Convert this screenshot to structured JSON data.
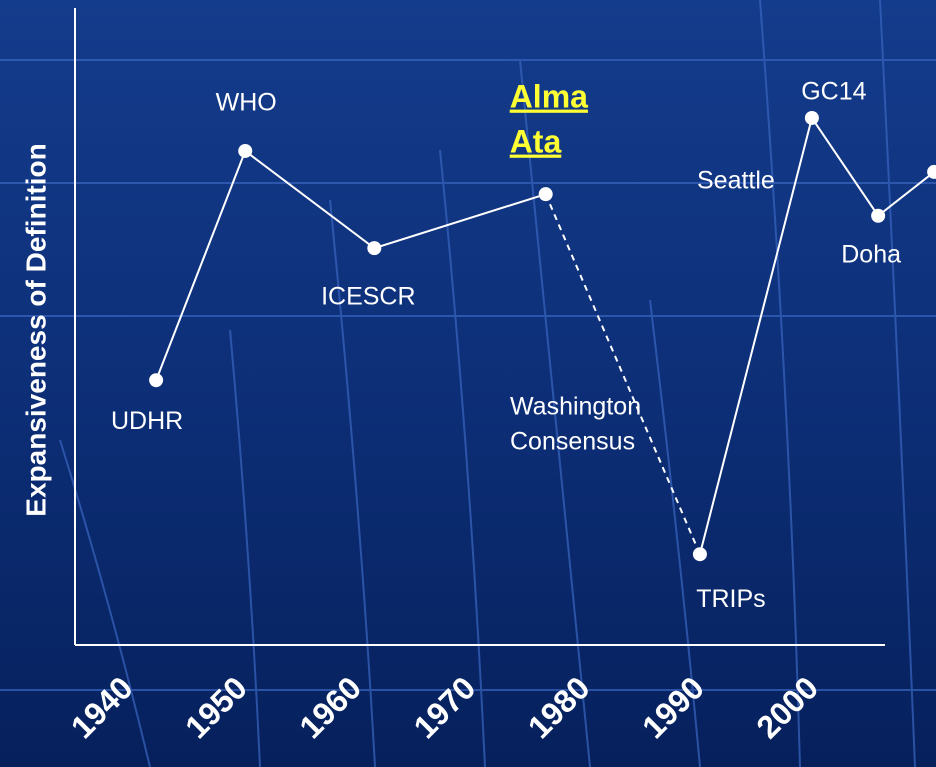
{
  "chart_data": {
    "type": "line",
    "y_label": "Expansiveness of Definition",
    "xlim": [
      1937.4,
      2008.3
    ],
    "xticks": [
      1940,
      1950,
      1960,
      1970,
      1980,
      1990,
      2000
    ],
    "ylim": [
      0,
      100
    ],
    "series": [
      {
        "style": "solid",
        "color": "#ffffff",
        "markers": true,
        "x": [
          1944.5,
          1952.3,
          1963.6,
          1978.6
        ],
        "values": [
          41.7,
          77.8,
          62.5,
          71
        ],
        "labels": [
          [
            "UDHR"
          ],
          [
            "WHO"
          ],
          [
            "ICESCR"
          ],
          [
            "Alma",
            "Ata"
          ]
        ]
      },
      {
        "style": "dashed",
        "color": "#ffffff",
        "markers": false,
        "x": [
          1978.6,
          1992.1
        ],
        "values": [
          71,
          14.3
        ]
      },
      {
        "style": "solid",
        "color": "#ffffff",
        "markers": true,
        "x": [
          1992.1,
          2001.9,
          2007.7,
          2012.6
        ],
        "values": [
          14.3,
          83,
          67.6,
          74.5
        ],
        "labels": [
          [
            "TRIPs"
          ],
          [
            "GC14"
          ],
          [
            "Doha"
          ],
          null
        ]
      }
    ],
    "annotations": [
      {
        "text": [
          "Washington",
          "Consensus"
        ]
      },
      {
        "text": [
          "Seattle"
        ]
      }
    ]
  }
}
